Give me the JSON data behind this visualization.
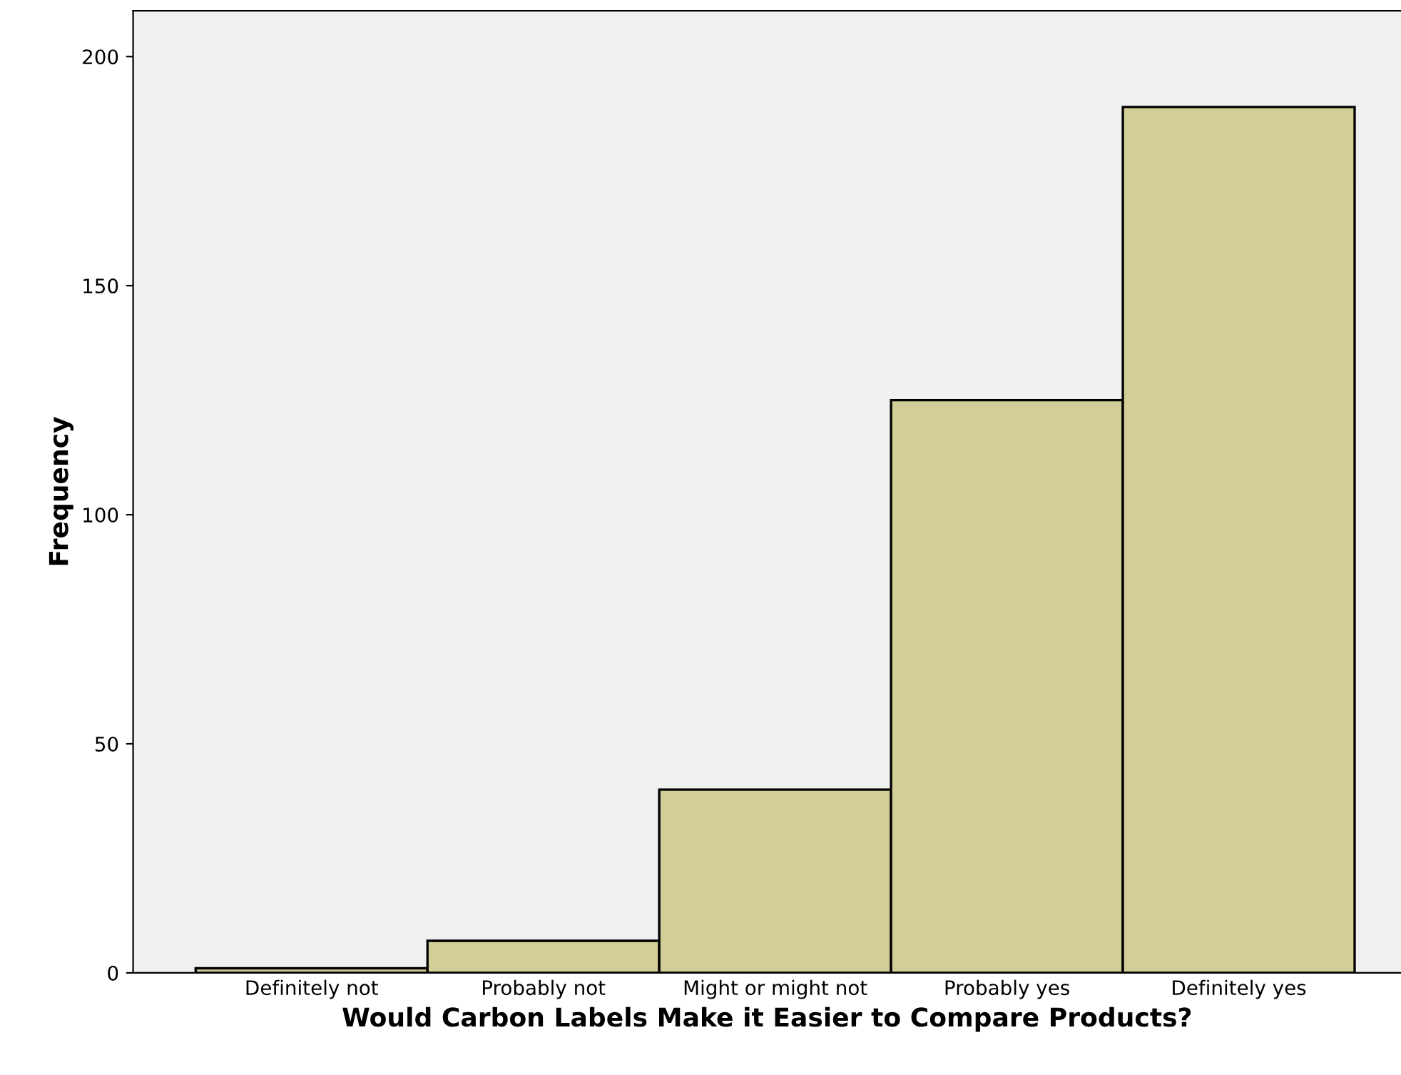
{
  "chart_data": {
    "type": "bar",
    "xlabel": "Would Carbon Labels Make it Easier to Compare Products?",
    "ylabel": "Frequency",
    "categories": [
      "Definitely not",
      "Probably not",
      "Might or might not",
      "Probably yes",
      "Definitely yes"
    ],
    "values": [
      1,
      7,
      40,
      125,
      189
    ],
    "color": "#d3ce97",
    "ylim": [
      0,
      210
    ],
    "yticks": [
      0,
      50,
      100,
      150,
      200
    ],
    "grid": false,
    "legend": false
  }
}
